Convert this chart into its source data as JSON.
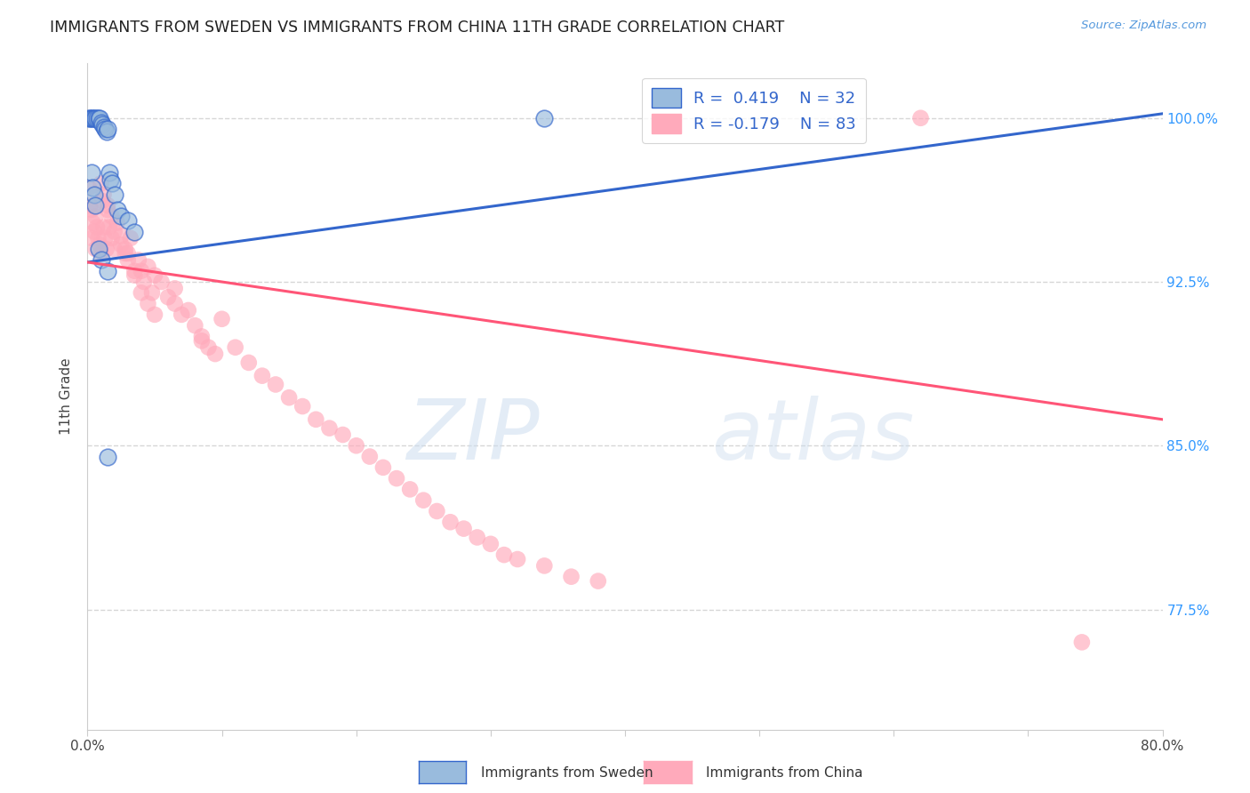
{
  "title": "IMMIGRANTS FROM SWEDEN VS IMMIGRANTS FROM CHINA 11TH GRADE CORRELATION CHART",
  "source": "Source: ZipAtlas.com",
  "ylabel": "11th Grade",
  "watermark_zip": "ZIP",
  "watermark_atlas": "atlas",
  "legend_r_sweden": "0.419",
  "legend_n_sweden": "32",
  "legend_r_china": "-0.179",
  "legend_n_china": "83",
  "x_min": 0.0,
  "x_max": 0.8,
  "y_min": 0.72,
  "y_max": 1.025,
  "x_tick_positions": [
    0.0,
    0.1,
    0.2,
    0.3,
    0.4,
    0.5,
    0.6,
    0.7,
    0.8
  ],
  "x_tick_labels": [
    "0.0%",
    "",
    "",
    "",
    "",
    "",
    "",
    "",
    "80.0%"
  ],
  "y_tick_positions": [
    0.775,
    0.85,
    0.925,
    1.0
  ],
  "y_tick_labels": [
    "77.5%",
    "85.0%",
    "92.5%",
    "100.0%"
  ],
  "color_sweden": "#99BBDD",
  "color_china": "#FFAABB",
  "color_trend_sweden": "#3366CC",
  "color_trend_china": "#FF5577",
  "background_color": "#FFFFFF",
  "grid_color": "#CCCCCC",
  "trend_sweden_x0": 0.0,
  "trend_sweden_y0": 0.934,
  "trend_sweden_x1": 0.8,
  "trend_sweden_y1": 1.002,
  "trend_china_x0": 0.0,
  "trend_china_y0": 0.934,
  "trend_china_x1": 0.8,
  "trend_china_y1": 0.862,
  "sweden_x": [
    0.001,
    0.002,
    0.003,
    0.004,
    0.005,
    0.006,
    0.007,
    0.008,
    0.009,
    0.01,
    0.011,
    0.012,
    0.013,
    0.014,
    0.015,
    0.016,
    0.017,
    0.018,
    0.02,
    0.022,
    0.025,
    0.03,
    0.035,
    0.003,
    0.004,
    0.005,
    0.006,
    0.008,
    0.01,
    0.015,
    0.34,
    0.015
  ],
  "sweden_y": [
    1.0,
    1.0,
    1.0,
    1.0,
    1.0,
    1.0,
    1.0,
    1.0,
    1.0,
    0.998,
    0.997,
    0.996,
    0.995,
    0.994,
    0.995,
    0.975,
    0.972,
    0.97,
    0.965,
    0.958,
    0.955,
    0.953,
    0.948,
    0.975,
    0.968,
    0.965,
    0.96,
    0.94,
    0.935,
    0.93,
    1.0,
    0.845
  ],
  "china_x": [
    0.001,
    0.002,
    0.003,
    0.003,
    0.004,
    0.005,
    0.006,
    0.006,
    0.007,
    0.008,
    0.009,
    0.01,
    0.011,
    0.012,
    0.013,
    0.014,
    0.015,
    0.016,
    0.018,
    0.02,
    0.022,
    0.025,
    0.028,
    0.03,
    0.032,
    0.035,
    0.038,
    0.04,
    0.042,
    0.045,
    0.048,
    0.05,
    0.055,
    0.06,
    0.065,
    0.07,
    0.075,
    0.08,
    0.085,
    0.09,
    0.095,
    0.1,
    0.11,
    0.12,
    0.13,
    0.14,
    0.15,
    0.16,
    0.17,
    0.18,
    0.19,
    0.2,
    0.21,
    0.22,
    0.23,
    0.24,
    0.25,
    0.26,
    0.27,
    0.28,
    0.29,
    0.3,
    0.31,
    0.32,
    0.34,
    0.36,
    0.38,
    0.01,
    0.012,
    0.015,
    0.018,
    0.02,
    0.025,
    0.028,
    0.03,
    0.035,
    0.04,
    0.045,
    0.05,
    0.065,
    0.085,
    0.62,
    0.74
  ],
  "china_y": [
    0.968,
    0.96,
    0.958,
    0.945,
    0.952,
    0.948,
    0.955,
    0.94,
    0.95,
    0.945,
    0.942,
    0.938,
    0.962,
    0.95,
    0.945,
    0.94,
    0.958,
    0.95,
    0.945,
    0.94,
    0.952,
    0.946,
    0.94,
    0.938,
    0.945,
    0.93,
    0.935,
    0.93,
    0.925,
    0.932,
    0.92,
    0.928,
    0.925,
    0.918,
    0.915,
    0.91,
    0.912,
    0.905,
    0.898,
    0.895,
    0.892,
    0.908,
    0.895,
    0.888,
    0.882,
    0.878,
    0.872,
    0.868,
    0.862,
    0.858,
    0.855,
    0.85,
    0.845,
    0.84,
    0.835,
    0.83,
    0.825,
    0.82,
    0.815,
    0.812,
    0.808,
    0.805,
    0.8,
    0.798,
    0.795,
    0.79,
    0.788,
    0.97,
    0.965,
    0.96,
    0.955,
    0.948,
    0.942,
    0.938,
    0.935,
    0.928,
    0.92,
    0.915,
    0.91,
    0.922,
    0.9,
    1.0,
    0.76
  ]
}
